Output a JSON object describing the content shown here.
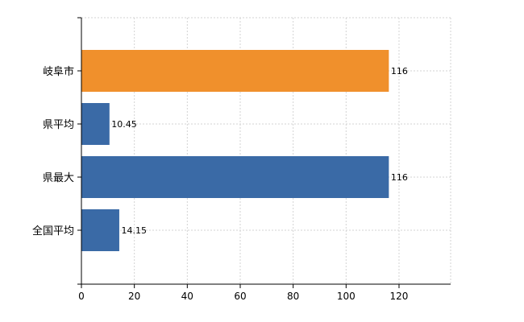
{
  "chart_data": {
    "type": "bar",
    "orientation": "horizontal",
    "categories": [
      "岐阜市",
      "県平均",
      "県最大",
      "全国平均"
    ],
    "values": [
      116,
      10.45,
      116,
      14.15
    ],
    "data_labels": [
      "116",
      "10.45",
      "116",
      "14.15"
    ],
    "colors": [
      "#f0902c",
      "#3a6aa6",
      "#3a6aa6",
      "#3a6aa6"
    ],
    "title": "",
    "xlabel": "",
    "ylabel": "",
    "xlim": [
      0,
      140
    ],
    "xticks": [
      0,
      20,
      40,
      60,
      80,
      100,
      120
    ],
    "grid": true,
    "legend": "none"
  }
}
